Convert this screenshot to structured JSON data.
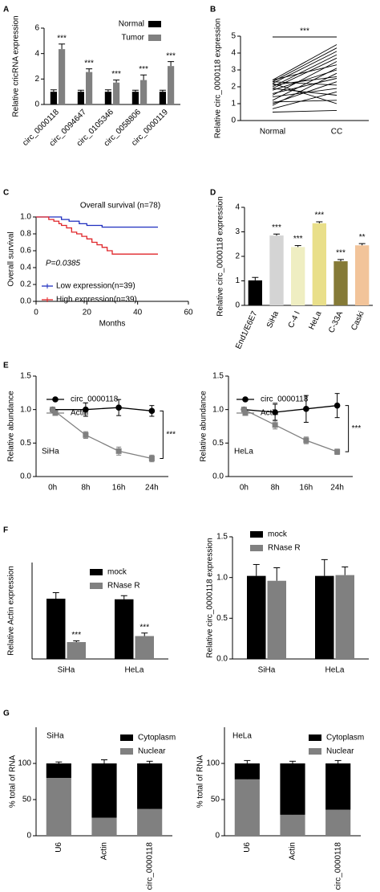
{
  "chart_data": [
    {
      "type": "bar",
      "panel": "A",
      "ylabel": "Relative cricRNA expression",
      "categories": [
        "circ_0000118",
        "circ_0094647",
        "circ_0105346",
        "circ_0058806",
        "circ_0000119"
      ],
      "series": [
        {
          "name": "Normal",
          "color": "#000000",
          "values": [
            1,
            1,
            1,
            1,
            1
          ],
          "errors": [
            0.15,
            0.12,
            0.15,
            0.12,
            0.12
          ]
        },
        {
          "name": "Tumor",
          "color": "#808080",
          "values": [
            4.35,
            2.55,
            1.72,
            1.92,
            3.02
          ],
          "errors": [
            0.4,
            0.25,
            0.2,
            0.4,
            0.35
          ]
        }
      ],
      "annotations": [
        "***",
        "***",
        "***",
        "***",
        "***"
      ],
      "ylim": [
        0,
        6
      ],
      "yticks": [
        0,
        2,
        4,
        6
      ]
    },
    {
      "type": "paired",
      "panel": "B",
      "ylabel": "Relative circ_0000118 expression",
      "categories": [
        "Normal",
        "CC"
      ],
      "color": "#000000",
      "values": [
        [
          2.4,
          4.5
        ],
        [
          2.3,
          4.3
        ],
        [
          2.2,
          4.1
        ],
        [
          2.0,
          3.9
        ],
        [
          1.9,
          3.7
        ],
        [
          1.5,
          3.5
        ],
        [
          2.4,
          3.3
        ],
        [
          1.2,
          3.1
        ],
        [
          1.8,
          3.0
        ],
        [
          0.9,
          2.8
        ],
        [
          2.1,
          2.6
        ],
        [
          1.6,
          2.5
        ],
        [
          1.0,
          2.3
        ],
        [
          2.3,
          2.1
        ],
        [
          1.4,
          1.9
        ],
        [
          0.7,
          1.7
        ],
        [
          1.9,
          1.5
        ],
        [
          1.1,
          1.2
        ],
        [
          2.2,
          1.0
        ],
        [
          0.5,
          0.6
        ]
      ],
      "annotation": "***",
      "ylim": [
        0,
        5
      ],
      "yticks": [
        0,
        1,
        2,
        3,
        4,
        5
      ]
    },
    {
      "type": "step",
      "panel": "C",
      "title": "Overall survival (n=78)",
      "annotation": "P=0.0385",
      "ylabel": "Overall survival",
      "xlabel": "Months",
      "series": [
        {
          "name": "Low expression(n=39)",
          "color": "#1f2fbf",
          "x": [
            0,
            10,
            13,
            17,
            20,
            26,
            48
          ],
          "values": [
            1,
            0.97,
            0.95,
            0.92,
            0.9,
            0.88,
            0.88
          ]
        },
        {
          "name": "High expression(n=39)",
          "color": "#e0262a",
          "x": [
            0,
            5,
            7,
            9,
            10,
            12,
            14,
            16,
            18,
            20,
            22,
            24,
            26,
            28,
            30,
            48
          ],
          "values": [
            1,
            0.97,
            0.95,
            0.92,
            0.9,
            0.87,
            0.82,
            0.8,
            0.77,
            0.74,
            0.7,
            0.67,
            0.64,
            0.6,
            0.56,
            0.56
          ]
        }
      ],
      "xlim": [
        0,
        60
      ],
      "xticks": [
        0,
        20,
        40,
        60
      ],
      "ylim": [
        0,
        1.0
      ],
      "yticks": [
        {
          "value": 0,
          "label": "0.0"
        },
        0.2,
        0.4,
        0.6,
        0.8,
        {
          "value": 1,
          "label": "1.0"
        }
      ]
    },
    {
      "type": "bar",
      "panel": "D",
      "ylabel": "Relative circ_0000118 expression",
      "categories": [
        "End1/E6E7",
        "SiHa",
        "C-4 I",
        "HeLa",
        "C-33A",
        "Caski"
      ],
      "values": [
        1.02,
        2.85,
        2.38,
        3.35,
        1.8,
        2.45
      ],
      "errors": [
        0.12,
        0.06,
        0.06,
        0.06,
        0.07,
        0.07
      ],
      "colors": [
        "#000000",
        "#d4d4d4",
        "#efeec2",
        "#e9df8a",
        "#857a37",
        "#f2c49a"
      ],
      "annotations": [
        null,
        "***",
        "***",
        "***",
        "***",
        "**"
      ],
      "ylim": [
        0,
        4
      ],
      "yticks": [
        0,
        1,
        2,
        3,
        4
      ]
    },
    {
      "type": "line",
      "panel": "E",
      "ylabel": "Relative abundance",
      "cell_line": "SiHa",
      "annotation": "***",
      "categories": [
        "0h",
        "8h",
        "16h",
        "24h"
      ],
      "series": [
        {
          "name": "circ_0000118",
          "color": "#000000",
          "marker": "circle",
          "values": [
            1,
            1.0,
            1.03,
            0.98
          ],
          "errors": [
            0.02,
            0.1,
            0.12,
            0.08
          ]
        },
        {
          "name": "Actin",
          "color": "#808080",
          "marker": "square",
          "values": [
            1,
            0.62,
            0.38,
            0.27
          ],
          "errors": [
            0.02,
            0.05,
            0.06,
            0.05
          ]
        }
      ],
      "ylim": [
        0,
        1.5
      ],
      "yticks": [
        {
          "value": 0,
          "label": "0.0"
        },
        0.5,
        {
          "value": 1,
          "label": "1.0"
        },
        1.5
      ]
    },
    {
      "type": "line",
      "ylabel": "Relative abundance",
      "cell_line": "HeLa",
      "annotation": "***",
      "categories": [
        "0h",
        "8h",
        "16h",
        "24h"
      ],
      "series": [
        {
          "name": "circ_0000118",
          "color": "#000000",
          "marker": "circle",
          "values": [
            1,
            0.96,
            1.01,
            1.06
          ],
          "errors": [
            0.02,
            0.12,
            0.2,
            0.18
          ]
        },
        {
          "name": "Actin",
          "color": "#808080",
          "marker": "square",
          "values": [
            1,
            0.77,
            0.54,
            0.37
          ],
          "errors": [
            0.02,
            0.06,
            0.05,
            0.04
          ]
        }
      ],
      "ylim": [
        0,
        1.5
      ],
      "yticks": [
        {
          "value": 0,
          "label": "0.0"
        },
        0.5,
        {
          "value": 1,
          "label": "1.0"
        },
        1.5
      ]
    },
    {
      "type": "bar",
      "panel": "F",
      "ylabel": "Relative Actin expression",
      "categories": [
        "SiHa",
        "HeLa"
      ],
      "series": [
        {
          "name": "mock",
          "color": "#000000",
          "values": [
            1.0,
            0.99
          ],
          "errors": [
            0.1,
            0.06
          ]
        },
        {
          "name": "RNase R",
          "color": "#808080",
          "values": [
            0.28,
            0.38
          ],
          "errors": [
            0.02,
            0.05
          ]
        }
      ],
      "annotations": [
        "***",
        "***"
      ],
      "ylim": [
        0,
        1.6
      ]
    },
    {
      "type": "bar",
      "ylabel": "Relative circ_0000118 expression",
      "categories": [
        "SiHa",
        "HeLa"
      ],
      "series": [
        {
          "name": "mock",
          "color": "#000000",
          "values": [
            1.02,
            1.02
          ],
          "errors": [
            0.14,
            0.2
          ]
        },
        {
          "name": "RNase R",
          "color": "#808080",
          "values": [
            0.96,
            1.03
          ],
          "errors": [
            0.16,
            0.1
          ]
        }
      ],
      "ylim": [
        0,
        1.5
      ],
      "yticks": [
        {
          "value": 0,
          "label": "0.0"
        },
        0.5,
        {
          "value": 1,
          "label": "1.0"
        },
        1.5
      ]
    },
    {
      "type": "stacked",
      "panel": "G",
      "ylabel": "% total of RNA",
      "cell_line": "SiHa",
      "categories": [
        "U6",
        "Actin",
        "circ_0000118"
      ],
      "series": [
        {
          "name": "Nuclear",
          "color": "#808080",
          "values": [
            80,
            25,
            37
          ],
          "errors": [
            2,
            5,
            3
          ]
        },
        {
          "name": "Cytoplasm",
          "color": "#000000",
          "values": [
            20,
            75,
            63
          ],
          "errors": [
            2,
            5,
            3
          ]
        }
      ],
      "ylim": [
        0,
        150
      ],
      "yticks": [
        0,
        50,
        100
      ]
    },
    {
      "type": "stacked",
      "ylabel": "% total of RNA",
      "cell_line": "HeLa",
      "categories": [
        "U6",
        "Actin",
        "circ_0000118"
      ],
      "series": [
        {
          "name": "Nuclear",
          "color": "#808080",
          "values": [
            78,
            29,
            36
          ],
          "errors": [
            4,
            3,
            4
          ]
        },
        {
          "name": "Cytoplasm",
          "color": "#000000",
          "values": [
            22,
            71,
            64
          ],
          "errors": [
            4,
            3,
            4
          ]
        }
      ],
      "ylim": [
        0,
        150
      ],
      "yticks": [
        0,
        50,
        100
      ]
    }
  ]
}
